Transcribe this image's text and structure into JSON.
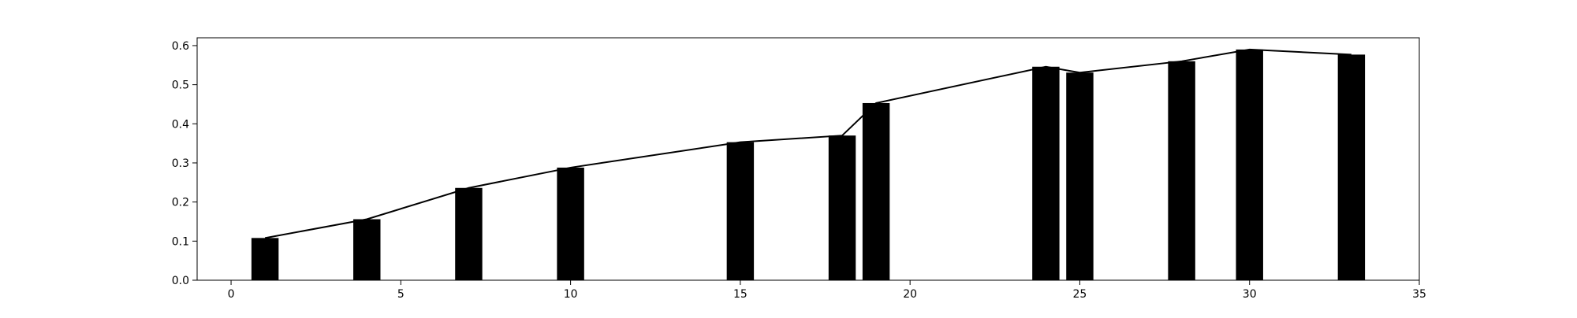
{
  "chart_data": {
    "type": "bar",
    "title": "",
    "xlabel": "",
    "ylabel": "",
    "xlim": [
      -1,
      35
    ],
    "ylim": [
      0,
      0.62
    ],
    "grid": false,
    "legend": "none",
    "bar_width": 0.8,
    "bar_color": "#000000",
    "line_color": "#000000",
    "x_ticks": [
      0,
      5,
      10,
      15,
      20,
      25,
      30,
      35
    ],
    "x_tick_labels": [
      "0",
      "5",
      "10",
      "15",
      "20",
      "25",
      "30",
      "35"
    ],
    "y_ticks": [
      0.0,
      0.1,
      0.2,
      0.3,
      0.4,
      0.5,
      0.6
    ],
    "y_tick_labels": [
      "0.0",
      "0.1",
      "0.2",
      "0.3",
      "0.4",
      "0.5",
      "0.6"
    ],
    "points": [
      {
        "x": 1,
        "y": 0.108
      },
      {
        "x": 4,
        "y": 0.156
      },
      {
        "x": 7,
        "y": 0.236
      },
      {
        "x": 10,
        "y": 0.288
      },
      {
        "x": 15,
        "y": 0.353
      },
      {
        "x": 18,
        "y": 0.37
      },
      {
        "x": 19,
        "y": 0.453
      },
      {
        "x": 24,
        "y": 0.546
      },
      {
        "x": 25,
        "y": 0.531
      },
      {
        "x": 28,
        "y": 0.56
      },
      {
        "x": 30,
        "y": 0.59
      },
      {
        "x": 33,
        "y": 0.577
      }
    ]
  }
}
